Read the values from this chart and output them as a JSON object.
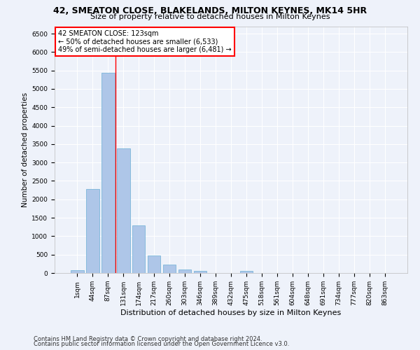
{
  "title1": "42, SMEATON CLOSE, BLAKELANDS, MILTON KEYNES, MK14 5HR",
  "title2": "Size of property relative to detached houses in Milton Keynes",
  "xlabel": "Distribution of detached houses by size in Milton Keynes",
  "ylabel": "Number of detached properties",
  "bar_color": "#aec6e8",
  "bar_edge_color": "#6aafd6",
  "vline_color": "red",
  "annotation_title": "42 SMEATON CLOSE: 123sqm",
  "annotation_line1": "← 50% of detached houses are smaller (6,533)",
  "annotation_line2": "49% of semi-detached houses are larger (6,481) →",
  "categories": [
    "1sqm",
    "44sqm",
    "87sqm",
    "131sqm",
    "174sqm",
    "217sqm",
    "260sqm",
    "303sqm",
    "346sqm",
    "389sqm",
    "432sqm",
    "475sqm",
    "518sqm",
    "561sqm",
    "604sqm",
    "648sqm",
    "691sqm",
    "734sqm",
    "777sqm",
    "820sqm",
    "863sqm"
  ],
  "values": [
    70,
    2280,
    5430,
    3380,
    1300,
    470,
    220,
    90,
    55,
    0,
    0,
    55,
    0,
    0,
    0,
    0,
    0,
    0,
    0,
    0,
    0
  ],
  "ylim": [
    0,
    6700
  ],
  "yticks": [
    0,
    500,
    1000,
    1500,
    2000,
    2500,
    3000,
    3500,
    4000,
    4500,
    5000,
    5500,
    6000,
    6500
  ],
  "footer1": "Contains HM Land Registry data © Crown copyright and database right 2024.",
  "footer2": "Contains public sector information licensed under the Open Government Licence v3.0.",
  "background_color": "#eef2fa",
  "grid_color": "white",
  "title1_fontsize": 9,
  "title2_fontsize": 8,
  "xlabel_fontsize": 8,
  "ylabel_fontsize": 7.5,
  "tick_fontsize": 6.5,
  "footer_fontsize": 6,
  "annot_fontsize": 7
}
